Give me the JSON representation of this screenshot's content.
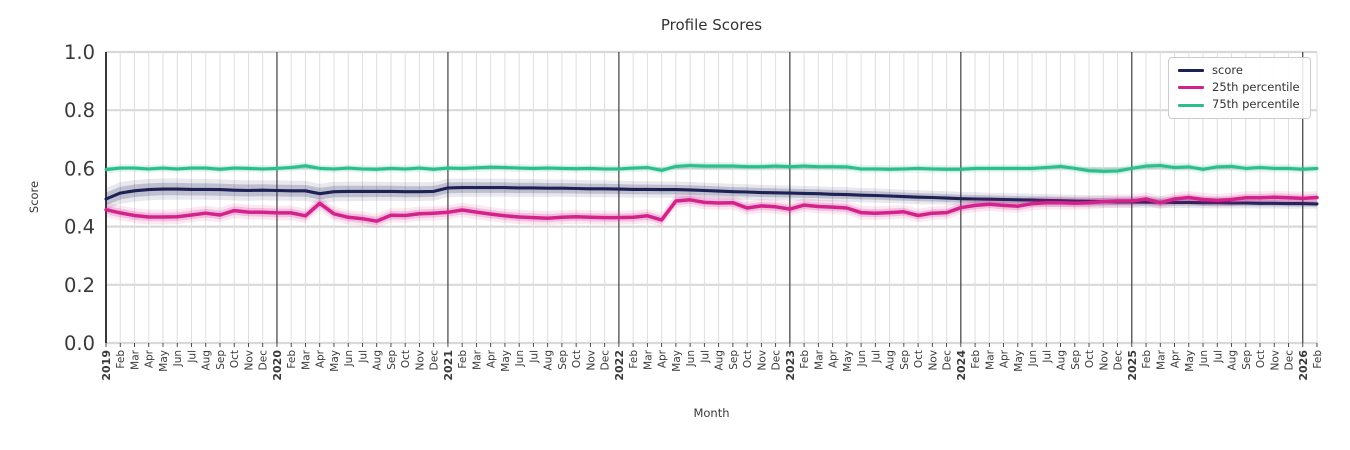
{
  "title": "Profile Scores",
  "axes": {
    "x_label": "Month",
    "y_label": "Score"
  },
  "chart_data": {
    "type": "line",
    "title": "Profile Scores",
    "xlabel": "Month",
    "ylabel": "Score",
    "ylim": [
      0.0,
      1.0
    ],
    "grid": true,
    "legend_position": "upper right",
    "y_ticks": [
      {
        "label": "1.0",
        "value": 1.0
      },
      {
        "label": "0.8",
        "value": 0.8
      },
      {
        "label": "0.6",
        "value": 0.6
      },
      {
        "label": "0.4",
        "value": 0.4
      },
      {
        "label": "0.2",
        "value": 0.2
      },
      {
        "label": "0.0",
        "value": 0.0
      }
    ],
    "x_tick_labels": [
      "2019",
      "Feb",
      "Mar",
      "Apr",
      "May",
      "Jun",
      "Jul",
      "Aug",
      "Sep",
      "Oct",
      "Nov",
      "Dec",
      "2020",
      "Feb",
      "Mar",
      "Apr",
      "May",
      "Jun",
      "Jul",
      "Aug",
      "Sep",
      "Oct",
      "Nov",
      "Dec",
      "2021",
      "Feb",
      "Mar",
      "Apr",
      "May",
      "Jun",
      "Jul",
      "Aug",
      "Sep",
      "Oct",
      "Nov",
      "Dec",
      "2022",
      "Feb",
      "Mar",
      "Apr",
      "May",
      "Jun",
      "Jul",
      "Aug",
      "Sep",
      "Oct",
      "Nov",
      "Dec",
      "2023",
      "Feb",
      "Mar",
      "Apr",
      "May",
      "Jun",
      "Jul",
      "Aug",
      "Sep",
      "Oct",
      "Nov",
      "Dec",
      "2024",
      "Feb",
      "Mar",
      "Apr",
      "May",
      "Jun",
      "Jul",
      "Aug",
      "Sep",
      "Oct",
      "Nov",
      "Dec",
      "2025",
      "Feb",
      "Mar",
      "Apr",
      "May",
      "Jun",
      "Jul",
      "Aug",
      "Sep",
      "Oct",
      "Nov",
      "Dec",
      "2026",
      "Feb"
    ],
    "year_tick_indices": [
      0,
      12,
      24,
      36,
      48,
      60,
      72,
      84
    ],
    "series": [
      {
        "name": "score",
        "color": "#1e2156",
        "band": {
          "start": 0.022,
          "end": 0.01
        },
        "values": [
          0.495,
          0.515,
          0.523,
          0.527,
          0.529,
          0.529,
          0.528,
          0.528,
          0.527,
          0.525,
          0.524,
          0.525,
          0.524,
          0.523,
          0.523,
          0.513,
          0.52,
          0.521,
          0.521,
          0.521,
          0.521,
          0.52,
          0.52,
          0.521,
          0.533,
          0.534,
          0.534,
          0.534,
          0.534,
          0.533,
          0.533,
          0.532,
          0.532,
          0.531,
          0.53,
          0.53,
          0.529,
          0.528,
          0.528,
          0.527,
          0.527,
          0.526,
          0.524,
          0.522,
          0.52,
          0.519,
          0.517,
          0.516,
          0.515,
          0.514,
          0.513,
          0.511,
          0.51,
          0.508,
          0.507,
          0.505,
          0.503,
          0.501,
          0.5,
          0.498,
          0.496,
          0.495,
          0.494,
          0.493,
          0.492,
          0.491,
          0.49,
          0.489,
          0.488,
          0.487,
          0.486,
          0.485,
          0.485,
          0.484,
          0.484,
          0.483,
          0.483,
          0.482,
          0.482,
          0.481,
          0.481,
          0.48,
          0.48,
          0.479,
          0.479,
          0.478
        ]
      },
      {
        "name": "25th percentile",
        "color": "#d4218c",
        "band": {
          "start": 0.015,
          "end": 0.013
        },
        "values": [
          0.458,
          0.447,
          0.438,
          0.433,
          0.433,
          0.434,
          0.44,
          0.446,
          0.44,
          0.455,
          0.45,
          0.449,
          0.447,
          0.447,
          0.437,
          0.48,
          0.444,
          0.432,
          0.427,
          0.419,
          0.439,
          0.438,
          0.444,
          0.446,
          0.449,
          0.457,
          0.45,
          0.443,
          0.437,
          0.433,
          0.431,
          0.429,
          0.432,
          0.434,
          0.432,
          0.431,
          0.431,
          0.432,
          0.437,
          0.423,
          0.488,
          0.492,
          0.483,
          0.481,
          0.482,
          0.464,
          0.471,
          0.468,
          0.46,
          0.474,
          0.469,
          0.467,
          0.464,
          0.448,
          0.446,
          0.448,
          0.451,
          0.438,
          0.446,
          0.448,
          0.465,
          0.473,
          0.477,
          0.473,
          0.47,
          0.479,
          0.482,
          0.482,
          0.48,
          0.482,
          0.486,
          0.488,
          0.488,
          0.495,
          0.482,
          0.495,
          0.5,
          0.493,
          0.49,
          0.493,
          0.499,
          0.499,
          0.501,
          0.499,
          0.497,
          0.5
        ]
      },
      {
        "name": "75th percentile",
        "color": "#2dbe8d",
        "band": {
          "start": 0.008,
          "end": 0.009
        },
        "values": [
          0.596,
          0.601,
          0.601,
          0.598,
          0.601,
          0.598,
          0.601,
          0.601,
          0.597,
          0.601,
          0.6,
          0.598,
          0.6,
          0.603,
          0.609,
          0.6,
          0.598,
          0.601,
          0.598,
          0.597,
          0.6,
          0.598,
          0.601,
          0.597,
          0.601,
          0.6,
          0.602,
          0.604,
          0.603,
          0.601,
          0.6,
          0.601,
          0.6,
          0.599,
          0.6,
          0.598,
          0.598,
          0.601,
          0.603,
          0.593,
          0.607,
          0.61,
          0.608,
          0.608,
          0.608,
          0.606,
          0.606,
          0.608,
          0.606,
          0.608,
          0.606,
          0.606,
          0.605,
          0.598,
          0.598,
          0.597,
          0.598,
          0.6,
          0.598,
          0.597,
          0.597,
          0.6,
          0.6,
          0.6,
          0.6,
          0.6,
          0.603,
          0.607,
          0.6,
          0.592,
          0.59,
          0.591,
          0.6,
          0.608,
          0.61,
          0.603,
          0.605,
          0.597,
          0.605,
          0.607,
          0.6,
          0.603,
          0.6,
          0.6,
          0.597,
          0.6
        ]
      }
    ]
  }
}
